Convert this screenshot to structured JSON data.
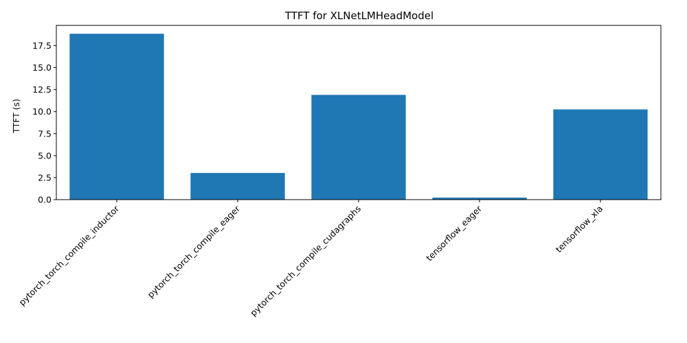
{
  "chart_data": {
    "type": "bar",
    "title": "TTFT for XLNetLMHeadModel",
    "xlabel": "",
    "ylabel": "TTFT (s)",
    "categories": [
      "pytorch_torch_compile_inductor",
      "pytorch_torch_compile_eager",
      "pytorch_torch_compile_cudagraphs",
      "tensorflow_eager",
      "tensorflow_xla"
    ],
    "values": [
      18.85,
      3.03,
      11.9,
      0.23,
      10.25
    ],
    "ylim": [
      0,
      19.8
    ],
    "yticks": [
      "0.0",
      "2.5",
      "5.0",
      "7.5",
      "10.0",
      "12.5",
      "15.0",
      "17.5"
    ],
    "bar_color": "#1f77b4",
    "grid": false,
    "legend": "none"
  }
}
